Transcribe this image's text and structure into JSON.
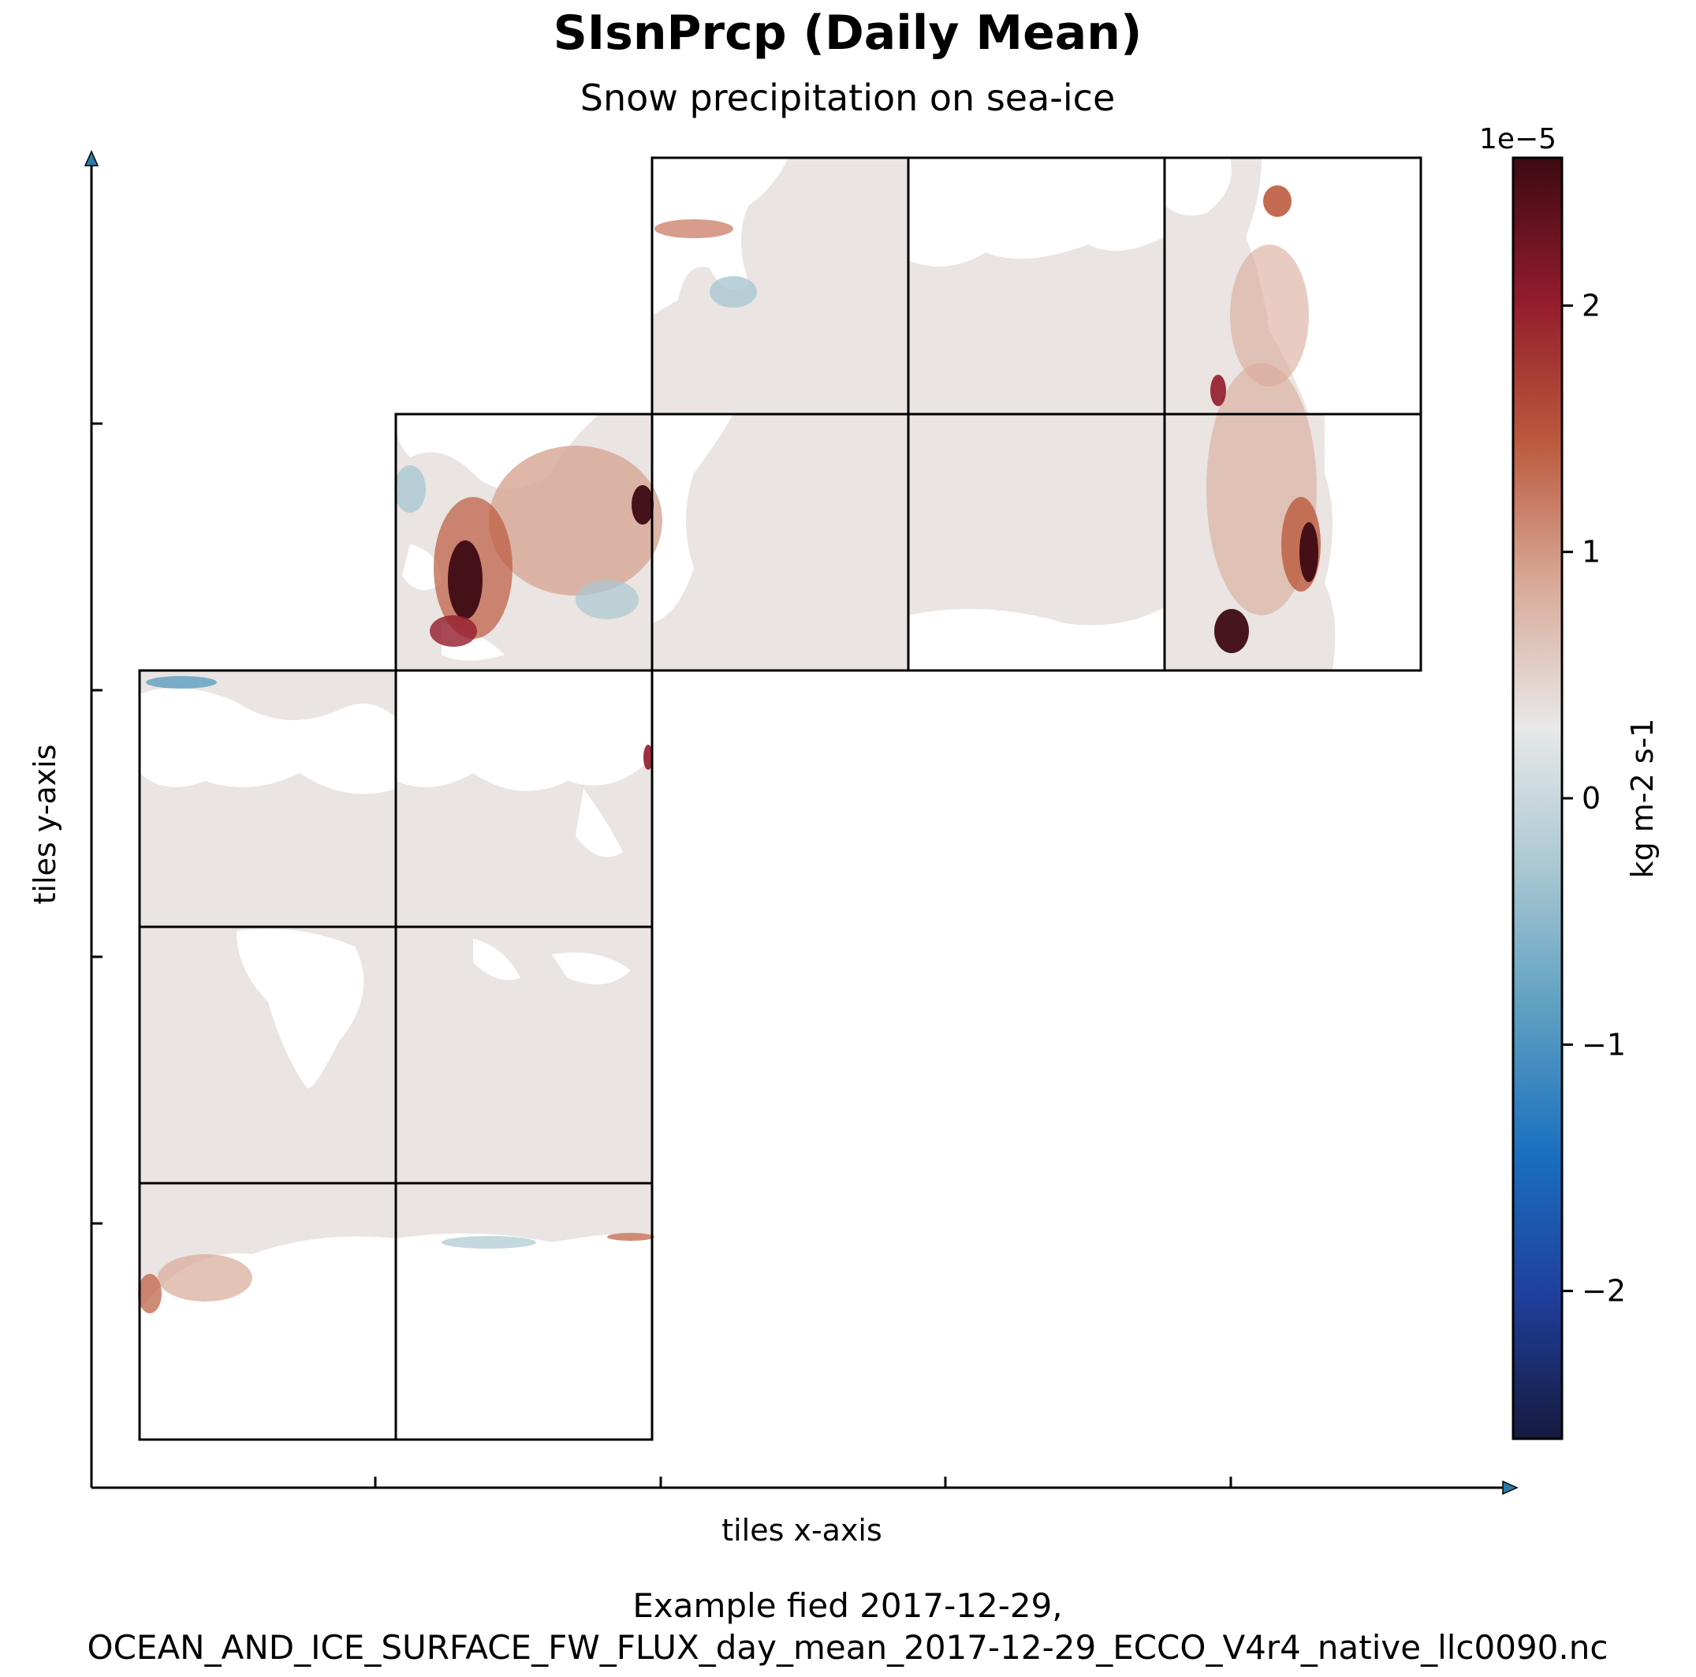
{
  "chart_data": {
    "type": "heatmap",
    "title": "SIsnPrcp (Daily Mean)",
    "subtitle": "Snow precipitation on sea-ice",
    "xlabel": "tiles x-axis",
    "ylabel": "tiles y-axis",
    "caption_line1": "Example fied 2017-12-29,",
    "caption_line2": "OCEAN_AND_ICE_SURFACE_FW_FLUX_day_mean_2017-12-29_ECCO_V4r4_native_llc0090.nc",
    "colorbar": {
      "label": "kg m-2 s-1",
      "multiplier": "1e−5",
      "range": [
        -2.6,
        2.6
      ],
      "ticks": [
        {
          "value": 2,
          "label": "2"
        },
        {
          "value": 1,
          "label": "1"
        },
        {
          "value": 0,
          "label": "0"
        },
        {
          "value": -1,
          "label": "−1"
        },
        {
          "value": -2,
          "label": "−2"
        }
      ],
      "colormap": [
        "#161a3e",
        "#1f3f9c",
        "#1a6fc0",
        "#5c9fc1",
        "#a9c7d2",
        "#e8e8e8",
        "#d8aa99",
        "#bc5a3d",
        "#931b2c",
        "#3d0a13"
      ]
    },
    "grid": {
      "columns": 5,
      "rows": 5
    },
    "tiles": [
      {
        "col": 0,
        "row": 2,
        "values": "ocean mostly near 0; weak positive along lower-left"
      },
      {
        "col": 1,
        "row": 2,
        "values": "near 0"
      },
      {
        "col": 0,
        "row": 3,
        "values": "near 0"
      },
      {
        "col": 1,
        "row": 3,
        "values": "near 0"
      },
      {
        "col": 0,
        "row": 4,
        "values": "near 0 with small positive near Antarctic margin"
      },
      {
        "col": 1,
        "row": 4,
        "values": "near 0 with small positive near Antarctic margin"
      },
      {
        "col": 1,
        "row": 1,
        "values": "Arctic cap, positive up to ~2.6e-5"
      },
      {
        "col": 2,
        "row": 1,
        "values": "near 0"
      },
      {
        "col": 3,
        "row": 1,
        "values": "near 0"
      },
      {
        "col": 4,
        "row": 1,
        "values": "positive up to ~2.6e-5"
      },
      {
        "col": 2,
        "row": 0,
        "values": "near 0 with small positive"
      },
      {
        "col": 3,
        "row": 0,
        "values": "near 0"
      },
      {
        "col": 4,
        "row": 0,
        "values": "positive up to ~2e-5"
      }
    ]
  }
}
